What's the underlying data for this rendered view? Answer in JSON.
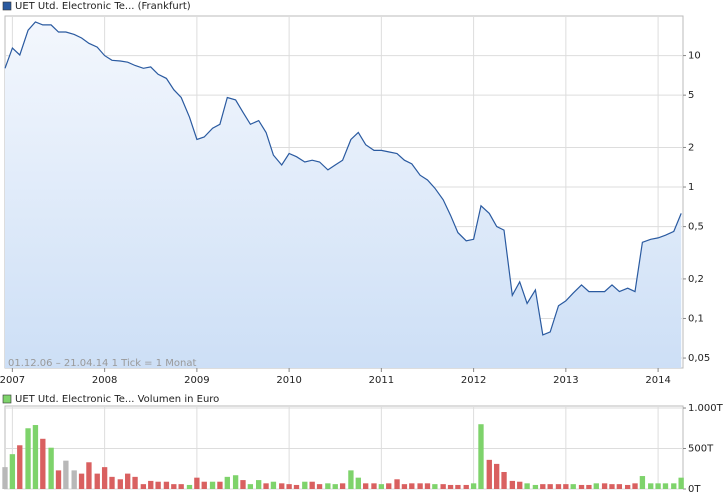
{
  "chart_data": [
    {
      "type": "area",
      "title": "UET Utd. Electronic Te... (Frankfurt)",
      "annotation": "01.12.06 – 21.04.14   1 Tick = 1 Monat",
      "yscale": "log",
      "grid": true,
      "xlim": [
        2006.92,
        2014.27
      ],
      "xticks": [
        2007,
        2008,
        2009,
        2010,
        2011,
        2012,
        2013,
        2014
      ],
      "ylim": [
        0.042,
        20
      ],
      "yticks": [
        {
          "value": 0.05,
          "label": "0,05"
        },
        {
          "value": 0.1,
          "label": "0,1"
        },
        {
          "value": 0.2,
          "label": "0,2"
        },
        {
          "value": 0.5,
          "label": "0,5"
        },
        1,
        2,
        5,
        10
      ],
      "x": [
        2006.92,
        2007.0,
        2007.08,
        2007.17,
        2007.25,
        2007.33,
        2007.42,
        2007.5,
        2007.58,
        2007.67,
        2007.75,
        2007.83,
        2007.92,
        2008.0,
        2008.08,
        2008.17,
        2008.25,
        2008.33,
        2008.42,
        2008.5,
        2008.58,
        2008.67,
        2008.75,
        2008.83,
        2008.92,
        2009.0,
        2009.08,
        2009.17,
        2009.25,
        2009.33,
        2009.42,
        2009.5,
        2009.58,
        2009.67,
        2009.75,
        2009.83,
        2009.92,
        2010.0,
        2010.08,
        2010.17,
        2010.25,
        2010.33,
        2010.42,
        2010.5,
        2010.58,
        2010.67,
        2010.75,
        2010.83,
        2010.92,
        2011.0,
        2011.08,
        2011.17,
        2011.25,
        2011.33,
        2011.42,
        2011.5,
        2011.58,
        2011.67,
        2011.75,
        2011.83,
        2011.92,
        2012.0,
        2012.08,
        2012.17,
        2012.25,
        2012.33,
        2012.42,
        2012.5,
        2012.58,
        2012.67,
        2012.75,
        2012.83,
        2012.92,
        2013.0,
        2013.08,
        2013.17,
        2013.25,
        2013.33,
        2013.42,
        2013.5,
        2013.58,
        2013.67,
        2013.75,
        2013.83,
        2013.92,
        2014.0,
        2014.08,
        2014.17,
        2014.25
      ],
      "series": [
        {
          "name": "UET Utd. Electronic Te... (Frankfurt)",
          "color": "#2a5aa0",
          "values": [
            8.0,
            11.4,
            10.1,
            15.6,
            18,
            17.1,
            17.1,
            15.1,
            15.1,
            14.5,
            13.6,
            12.4,
            11.6,
            10,
            9.2,
            9.1,
            8.9,
            8.4,
            8.0,
            8.2,
            7.2,
            6.7,
            5.5,
            4.8,
            3.4,
            2.3,
            2.4,
            2.8,
            3.0,
            4.8,
            4.6,
            3.7,
            3.0,
            3.2,
            2.6,
            1.75,
            1.47,
            1.8,
            1.7,
            1.55,
            1.6,
            1.55,
            1.35,
            1.47,
            1.6,
            2.3,
            2.6,
            2.1,
            1.9,
            1.9,
            1.85,
            1.8,
            1.6,
            1.5,
            1.23,
            1.13,
            0.98,
            0.8,
            0.61,
            0.45,
            0.39,
            0.4,
            0.72,
            0.63,
            0.5,
            0.47,
            0.15,
            0.19,
            0.13,
            0.165,
            0.075,
            0.079,
            0.125,
            0.136,
            0.156,
            0.18,
            0.16,
            0.16,
            0.16,
            0.18,
            0.16,
            0.17,
            0.16,
            0.38,
            0.4,
            0.41,
            0.43,
            0.46,
            0.63
          ]
        }
      ]
    },
    {
      "type": "bar",
      "title": "UET Utd. Electronic Te... Volumen in Euro",
      "grid": true,
      "xlim": [
        2006.92,
        2014.27
      ],
      "xticks": [
        2007,
        2008,
        2009,
        2010,
        2011,
        2012,
        2013,
        2014
      ],
      "ylim": [
        0,
        1025
      ],
      "yticks": [
        {
          "value": 0,
          "label": "0T"
        },
        {
          "value": 500,
          "label": "500T"
        },
        {
          "value": 1000,
          "label": "1.000T"
        }
      ],
      "x": [
        2006.92,
        2007.0,
        2007.08,
        2007.17,
        2007.25,
        2007.33,
        2007.42,
        2007.5,
        2007.58,
        2007.67,
        2007.75,
        2007.83,
        2007.92,
        2008.0,
        2008.08,
        2008.17,
        2008.25,
        2008.33,
        2008.42,
        2008.5,
        2008.58,
        2008.67,
        2008.75,
        2008.83,
        2008.92,
        2009.0,
        2009.08,
        2009.17,
        2009.25,
        2009.33,
        2009.42,
        2009.5,
        2009.58,
        2009.67,
        2009.75,
        2009.83,
        2009.92,
        2010.0,
        2010.08,
        2010.17,
        2010.25,
        2010.33,
        2010.42,
        2010.5,
        2010.58,
        2010.67,
        2010.75,
        2010.83,
        2010.92,
        2011.0,
        2011.08,
        2011.17,
        2011.25,
        2011.33,
        2011.42,
        2011.5,
        2011.58,
        2011.67,
        2011.75,
        2011.83,
        2011.92,
        2012.0,
        2012.08,
        2012.17,
        2012.25,
        2012.33,
        2012.42,
        2012.5,
        2012.58,
        2012.67,
        2012.75,
        2012.83,
        2012.92,
        2013.0,
        2013.08,
        2013.17,
        2013.25,
        2013.33,
        2013.42,
        2013.5,
        2013.58,
        2013.67,
        2013.75,
        2013.83,
        2013.92,
        2014.0,
        2014.08,
        2014.17,
        2014.25
      ],
      "series": [
        {
          "name": "UET Utd. Electronic Te... Volumen in Euro",
          "color": "#7ed36b",
          "values": [
            270,
            430,
            540,
            750,
            790,
            620,
            510,
            230,
            350,
            230,
            190,
            330,
            190,
            270,
            150,
            120,
            190,
            150,
            60,
            100,
            90,
            90,
            60,
            60,
            50,
            140,
            90,
            90,
            90,
            150,
            170,
            110,
            60,
            110,
            70,
            90,
            70,
            60,
            50,
            90,
            90,
            60,
            70,
            60,
            70,
            230,
            140,
            70,
            70,
            60,
            70,
            120,
            60,
            70,
            70,
            70,
            60,
            60,
            50,
            50,
            50,
            70,
            800,
            360,
            310,
            210,
            100,
            90,
            70,
            50,
            60,
            60,
            60,
            60,
            60,
            50,
            50,
            70,
            70,
            60,
            60,
            50,
            70,
            160,
            70,
            70,
            70,
            70,
            140
          ],
          "colors": [
            "#b8b8b8",
            "#7ed36b",
            "#d96060",
            "#7ed36b",
            "#7ed36b",
            "#d96060",
            "#7ed36b",
            "#d96060",
            "#b8b8b8",
            "#b8b8b8",
            "#d96060",
            "#d96060",
            "#d96060",
            "#d96060",
            "#d96060",
            "#d96060",
            "#d96060",
            "#d96060",
            "#d96060",
            "#d96060",
            "#d96060",
            "#d96060",
            "#d96060",
            "#d96060",
            "#7ed36b",
            "#d96060",
            "#d96060",
            "#7ed36b",
            "#d96060",
            "#7ed36b",
            "#7ed36b",
            "#d96060",
            "#7ed36b",
            "#7ed36b",
            "#d96060",
            "#7ed36b",
            "#d96060",
            "#d96060",
            "#d96060",
            "#7ed36b",
            "#d96060",
            "#d96060",
            "#7ed36b",
            "#7ed36b",
            "#d96060",
            "#7ed36b",
            "#7ed36b",
            "#d96060",
            "#d96060",
            "#7ed36b",
            "#d96060",
            "#d96060",
            "#d96060",
            "#d96060",
            "#d96060",
            "#d96060",
            "#7ed36b",
            "#d96060",
            "#d96060",
            "#d96060",
            "#d96060",
            "#7ed36b",
            "#7ed36b",
            "#d96060",
            "#d96060",
            "#d96060",
            "#d96060",
            "#d96060",
            "#7ed36b",
            "#7ed36b",
            "#d96060",
            "#d96060",
            "#d96060",
            "#d96060",
            "#7ed36b",
            "#d96060",
            "#d96060",
            "#7ed36b",
            "#d96060",
            "#d96060",
            "#d96060",
            "#d96060",
            "#d96060",
            "#7ed36b",
            "#7ed36b",
            "#7ed36b",
            "#7ed36b",
            "#7ed36b",
            "#7ed36b"
          ]
        }
      ]
    }
  ]
}
